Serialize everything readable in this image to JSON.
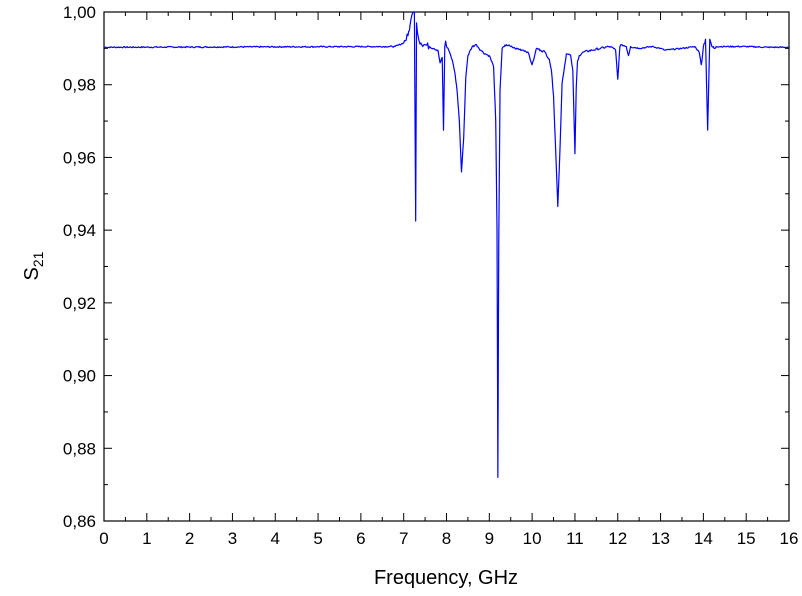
{
  "chart_data": {
    "type": "line",
    "xlabel": "Frequency, GHz",
    "ylabel_main": "S",
    "ylabel_sub": "21",
    "xlim": [
      0,
      16
    ],
    "ylim": [
      0.86,
      1.0
    ],
    "x_ticks": [
      0,
      1,
      2,
      3,
      4,
      5,
      6,
      7,
      8,
      9,
      10,
      11,
      12,
      13,
      14,
      15,
      16
    ],
    "x_tick_labels": [
      "0",
      "1",
      "2",
      "3",
      "4",
      "5",
      "6",
      "7",
      "8",
      "9",
      "10",
      "11",
      "12",
      "13",
      "14",
      "15",
      "16"
    ],
    "y_ticks": [
      0.86,
      0.88,
      0.9,
      0.92,
      0.94,
      0.96,
      0.98,
      1.0
    ],
    "y_tick_labels": [
      "0,86",
      "0,88",
      "0,90",
      "0,92",
      "0,94",
      "0,96",
      "0,98",
      "1,00"
    ],
    "grid": false,
    "line_color": "#0000ff",
    "baseline": 0.9903,
    "series": [
      {
        "x": [
          0.0,
          6.8,
          7.0,
          7.1,
          7.15,
          7.2,
          7.25,
          7.28,
          7.3,
          7.32,
          7.35,
          7.4,
          7.5,
          7.6,
          7.7,
          7.8,
          7.85,
          7.9,
          7.93,
          7.96,
          7.98,
          8.0,
          8.05,
          8.1,
          8.15,
          8.2,
          8.25,
          8.3,
          8.35,
          8.4,
          8.45,
          8.5,
          8.6,
          8.7,
          8.8,
          8.9,
          9.0,
          9.1,
          9.15,
          9.18,
          9.2,
          9.22,
          9.25,
          9.28,
          9.3,
          9.35,
          9.4,
          9.5,
          9.6,
          9.8,
          9.9,
          10.0,
          10.05,
          10.1,
          10.2,
          10.3,
          10.4,
          10.45,
          10.5,
          10.55,
          10.6,
          10.65,
          10.7,
          10.8,
          10.9,
          10.95,
          11.0,
          11.03,
          11.06,
          11.1,
          11.2,
          11.4,
          11.6,
          11.8,
          11.9,
          11.95,
          12.0,
          12.05,
          12.1,
          12.2,
          12.25,
          12.3,
          12.5,
          12.8,
          13.0,
          13.1,
          13.5,
          13.8,
          13.9,
          13.95,
          14.0,
          14.05,
          14.1,
          14.15,
          14.2,
          14.25,
          14.3,
          14.5,
          15.0,
          15.5,
          16.0
        ],
        "y": [
          0.9903,
          0.9905,
          0.9915,
          0.9935,
          0.9965,
          0.9995,
          1.0,
          0.9425,
          0.997,
          0.9945,
          0.9925,
          0.9915,
          0.991,
          0.9905,
          0.99,
          0.9895,
          0.986,
          0.9875,
          0.9675,
          0.9905,
          0.992,
          0.9905,
          0.9895,
          0.988,
          0.986,
          0.983,
          0.978,
          0.97,
          0.956,
          0.965,
          0.982,
          0.988,
          0.9905,
          0.991,
          0.9895,
          0.9885,
          0.988,
          0.985,
          0.97,
          0.94,
          0.872,
          0.935,
          0.9785,
          0.9855,
          0.99,
          0.9905,
          0.991,
          0.9905,
          0.99,
          0.9895,
          0.989,
          0.9855,
          0.9875,
          0.99,
          0.9895,
          0.989,
          0.987,
          0.984,
          0.977,
          0.962,
          0.9465,
          0.962,
          0.9805,
          0.9885,
          0.988,
          0.984,
          0.961,
          0.979,
          0.9865,
          0.988,
          0.989,
          0.9895,
          0.99,
          0.9905,
          0.99,
          0.9895,
          0.9815,
          0.9905,
          0.991,
          0.9905,
          0.988,
          0.9905,
          0.99,
          0.9905,
          0.99,
          0.9895,
          0.99,
          0.9905,
          0.989,
          0.9855,
          0.9905,
          0.9925,
          0.9675,
          0.9925,
          0.9905,
          0.99,
          0.9905,
          0.9905,
          0.9905,
          0.9903,
          0.9903
        ]
      }
    ]
  }
}
